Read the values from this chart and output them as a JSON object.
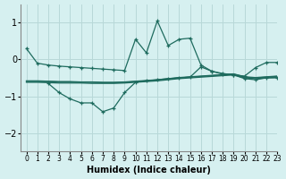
{
  "xlabel": "Humidex (Indice chaleur)",
  "background_color": "#d6f0f0",
  "grid_color": "#b8d8d8",
  "line_color": "#1e6b5e",
  "xlim": [
    -0.5,
    23
  ],
  "ylim": [
    -2.5,
    1.5
  ],
  "yticks": [
    -2,
    -1,
    0,
    1
  ],
  "xticks": [
    0,
    1,
    2,
    3,
    4,
    5,
    6,
    7,
    8,
    9,
    10,
    11,
    12,
    13,
    14,
    15,
    16,
    17,
    18,
    19,
    20,
    21,
    22,
    23
  ],
  "line1_x": [
    0,
    1,
    2,
    3,
    4,
    5,
    6,
    7,
    8,
    9,
    10,
    11,
    12,
    13,
    14,
    15,
    16,
    17,
    18,
    19,
    20,
    21,
    22,
    23
  ],
  "line1_y": [
    0.3,
    -0.1,
    -0.15,
    -0.18,
    -0.2,
    -0.22,
    -0.24,
    -0.26,
    -0.28,
    -0.3,
    0.55,
    0.18,
    1.05,
    0.38,
    0.55,
    0.58,
    -0.15,
    -0.32,
    -0.38,
    -0.42,
    -0.45,
    -0.22,
    -0.08,
    -0.08
  ],
  "line2_x": [
    2,
    3,
    4,
    5,
    6,
    7,
    8,
    9,
    10,
    11,
    12,
    13,
    14,
    15,
    16,
    17,
    18,
    19,
    20,
    21,
    22,
    23
  ],
  "line2_y": [
    -0.65,
    -0.9,
    -1.07,
    -1.18,
    -1.18,
    -1.42,
    -1.32,
    -0.9,
    -0.62,
    -0.58,
    -0.55,
    -0.52,
    -0.5,
    -0.48,
    -0.2,
    -0.32,
    -0.4,
    -0.42,
    -0.52,
    -0.55,
    -0.5,
    -0.5
  ],
  "line3_x": [
    0,
    1,
    2,
    3,
    4,
    5,
    6,
    7,
    8,
    9,
    10,
    11,
    12,
    13,
    14,
    15,
    16,
    17,
    18,
    19,
    20,
    21,
    22,
    23
  ],
  "line3_y": [
    -0.62,
    -0.62,
    -0.63,
    -0.64,
    -0.64,
    -0.64,
    -0.65,
    -0.65,
    -0.65,
    -0.64,
    -0.62,
    -0.6,
    -0.58,
    -0.55,
    -0.52,
    -0.5,
    -0.48,
    -0.46,
    -0.44,
    -0.42,
    -0.5,
    -0.52,
    -0.5,
    -0.48
  ],
  "line4_x": [
    0,
    1,
    2,
    3,
    4,
    5,
    6,
    7,
    8,
    9,
    10,
    11,
    12,
    13,
    14,
    15,
    16,
    17,
    18,
    19,
    20,
    21,
    22,
    23
  ],
  "line4_y": [
    -0.6,
    -0.6,
    -0.6,
    -0.61,
    -0.61,
    -0.62,
    -0.62,
    -0.63,
    -0.63,
    -0.62,
    -0.6,
    -0.58,
    -0.56,
    -0.53,
    -0.5,
    -0.48,
    -0.46,
    -0.44,
    -0.42,
    -0.4,
    -0.48,
    -0.5,
    -0.48,
    -0.46
  ],
  "line5_x": [
    0,
    1,
    2,
    3,
    4,
    5,
    6,
    7,
    8,
    9,
    10,
    11,
    12,
    13,
    14,
    15,
    16,
    17,
    18,
    19,
    20,
    21,
    22,
    23
  ],
  "line5_y": [
    -0.58,
    -0.58,
    -0.59,
    -0.6,
    -0.6,
    -0.61,
    -0.61,
    -0.62,
    -0.62,
    -0.61,
    -0.59,
    -0.57,
    -0.55,
    -0.52,
    -0.49,
    -0.47,
    -0.45,
    -0.43,
    -0.41,
    -0.39,
    -0.47,
    -0.49,
    -0.47,
    -0.45
  ]
}
